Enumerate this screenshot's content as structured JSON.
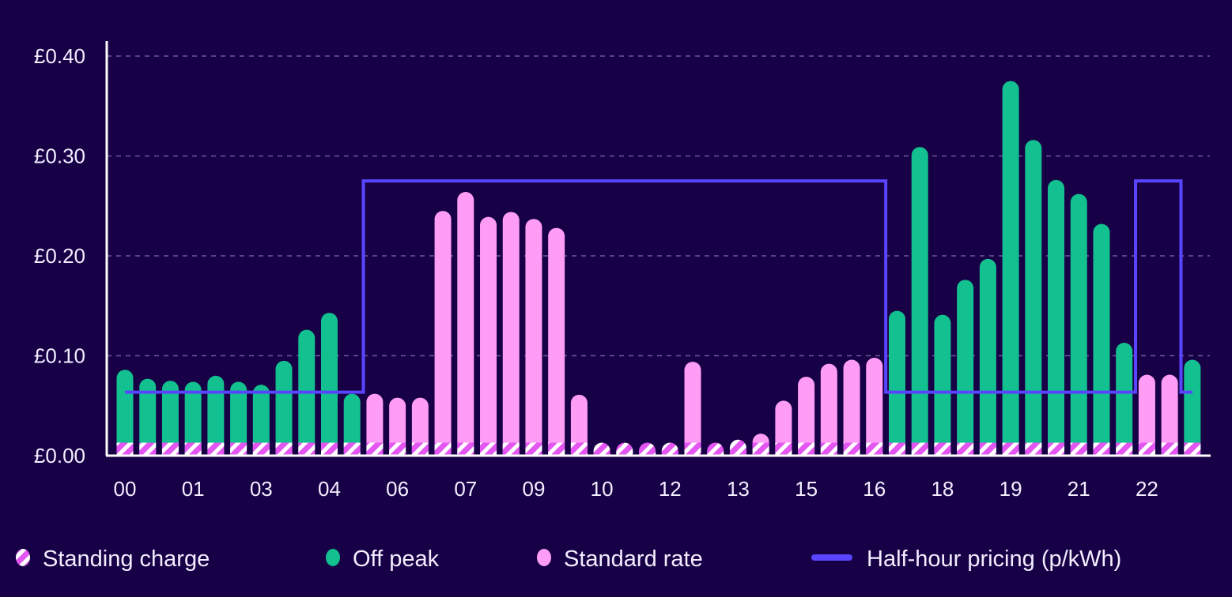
{
  "chart_data": {
    "type": "bar",
    "title": "",
    "xlabel": "",
    "ylabel": "",
    "ylim": [
      0,
      0.4
    ],
    "grid": true,
    "legend_position": "bottom",
    "y_ticks": [
      {
        "value": 0,
        "label": "£0.00"
      },
      {
        "value": 0.1,
        "label": "£0.10"
      },
      {
        "value": 0.2,
        "label": "£0.20"
      },
      {
        "value": 0.3,
        "label": "£0.30"
      },
      {
        "value": 0.4,
        "label": "£0.40"
      }
    ],
    "x_tick_labels": [
      "00",
      "01",
      "03",
      "04",
      "06",
      "07",
      "09",
      "10",
      "12",
      "13",
      "15",
      "16",
      "18",
      "19",
      "21",
      "22"
    ],
    "x_tick_every": 3,
    "standing_charge": 0.013,
    "bars": {
      "values": [
        0.086,
        0.077,
        0.075,
        0.074,
        0.08,
        0.074,
        0.071,
        0.095,
        0.126,
        0.143,
        0.062,
        0.062,
        0.058,
        0.058,
        0.245,
        0.264,
        0.239,
        0.244,
        0.237,
        0.228,
        0.061,
        0.013,
        0.013,
        0.013,
        0.013,
        0.094,
        0.013,
        0.016,
        0.022,
        0.055,
        0.079,
        0.092,
        0.096,
        0.098,
        0.145,
        0.309,
        0.141,
        0.176,
        0.197,
        0.375,
        0.316,
        0.276,
        0.262,
        0.232,
        0.113,
        0.081,
        0.081,
        0.096
      ],
      "rate": [
        "off",
        "off",
        "off",
        "off",
        "off",
        "off",
        "off",
        "off",
        "off",
        "off",
        "off",
        "std",
        "std",
        "std",
        "std",
        "std",
        "std",
        "std",
        "std",
        "std",
        "std",
        "std",
        "std",
        "std",
        "std",
        "std",
        "std",
        "std",
        "std",
        "std",
        "std",
        "std",
        "std",
        "std",
        "off",
        "off",
        "off",
        "off",
        "off",
        "off",
        "off",
        "off",
        "off",
        "off",
        "off",
        "std",
        "std",
        "off"
      ]
    },
    "half_hour_pricing": {
      "name": "Half-hour pricing (p/kWh)",
      "levels_on_axis": {
        "low": 0.0635,
        "high": 0.275
      },
      "slots": [
        "low",
        "low",
        "low",
        "low",
        "low",
        "low",
        "low",
        "low",
        "low",
        "low",
        "low",
        "high",
        "high",
        "high",
        "high",
        "high",
        "high",
        "high",
        "high",
        "high",
        "high",
        "high",
        "high",
        "high",
        "high",
        "high",
        "high",
        "high",
        "high",
        "high",
        "high",
        "high",
        "high",
        "high",
        "low",
        "low",
        "low",
        "low",
        "low",
        "low",
        "low",
        "low",
        "low",
        "low",
        "low",
        "high",
        "high",
        "low"
      ]
    },
    "legend": [
      {
        "key": "standing",
        "label": "Standing charge"
      },
      {
        "key": "off",
        "label": "Off peak"
      },
      {
        "key": "std",
        "label": "Standard rate"
      },
      {
        "key": "line",
        "label": "Half-hour pricing (p/kWh)"
      }
    ],
    "colors": {
      "background": "#170046",
      "off": "#13c08f",
      "std": "#ff9cf6",
      "hatch": "#e356f2",
      "line": "#5a45ff",
      "grid": "#6a5a9a",
      "axis": "#ffffff"
    }
  }
}
